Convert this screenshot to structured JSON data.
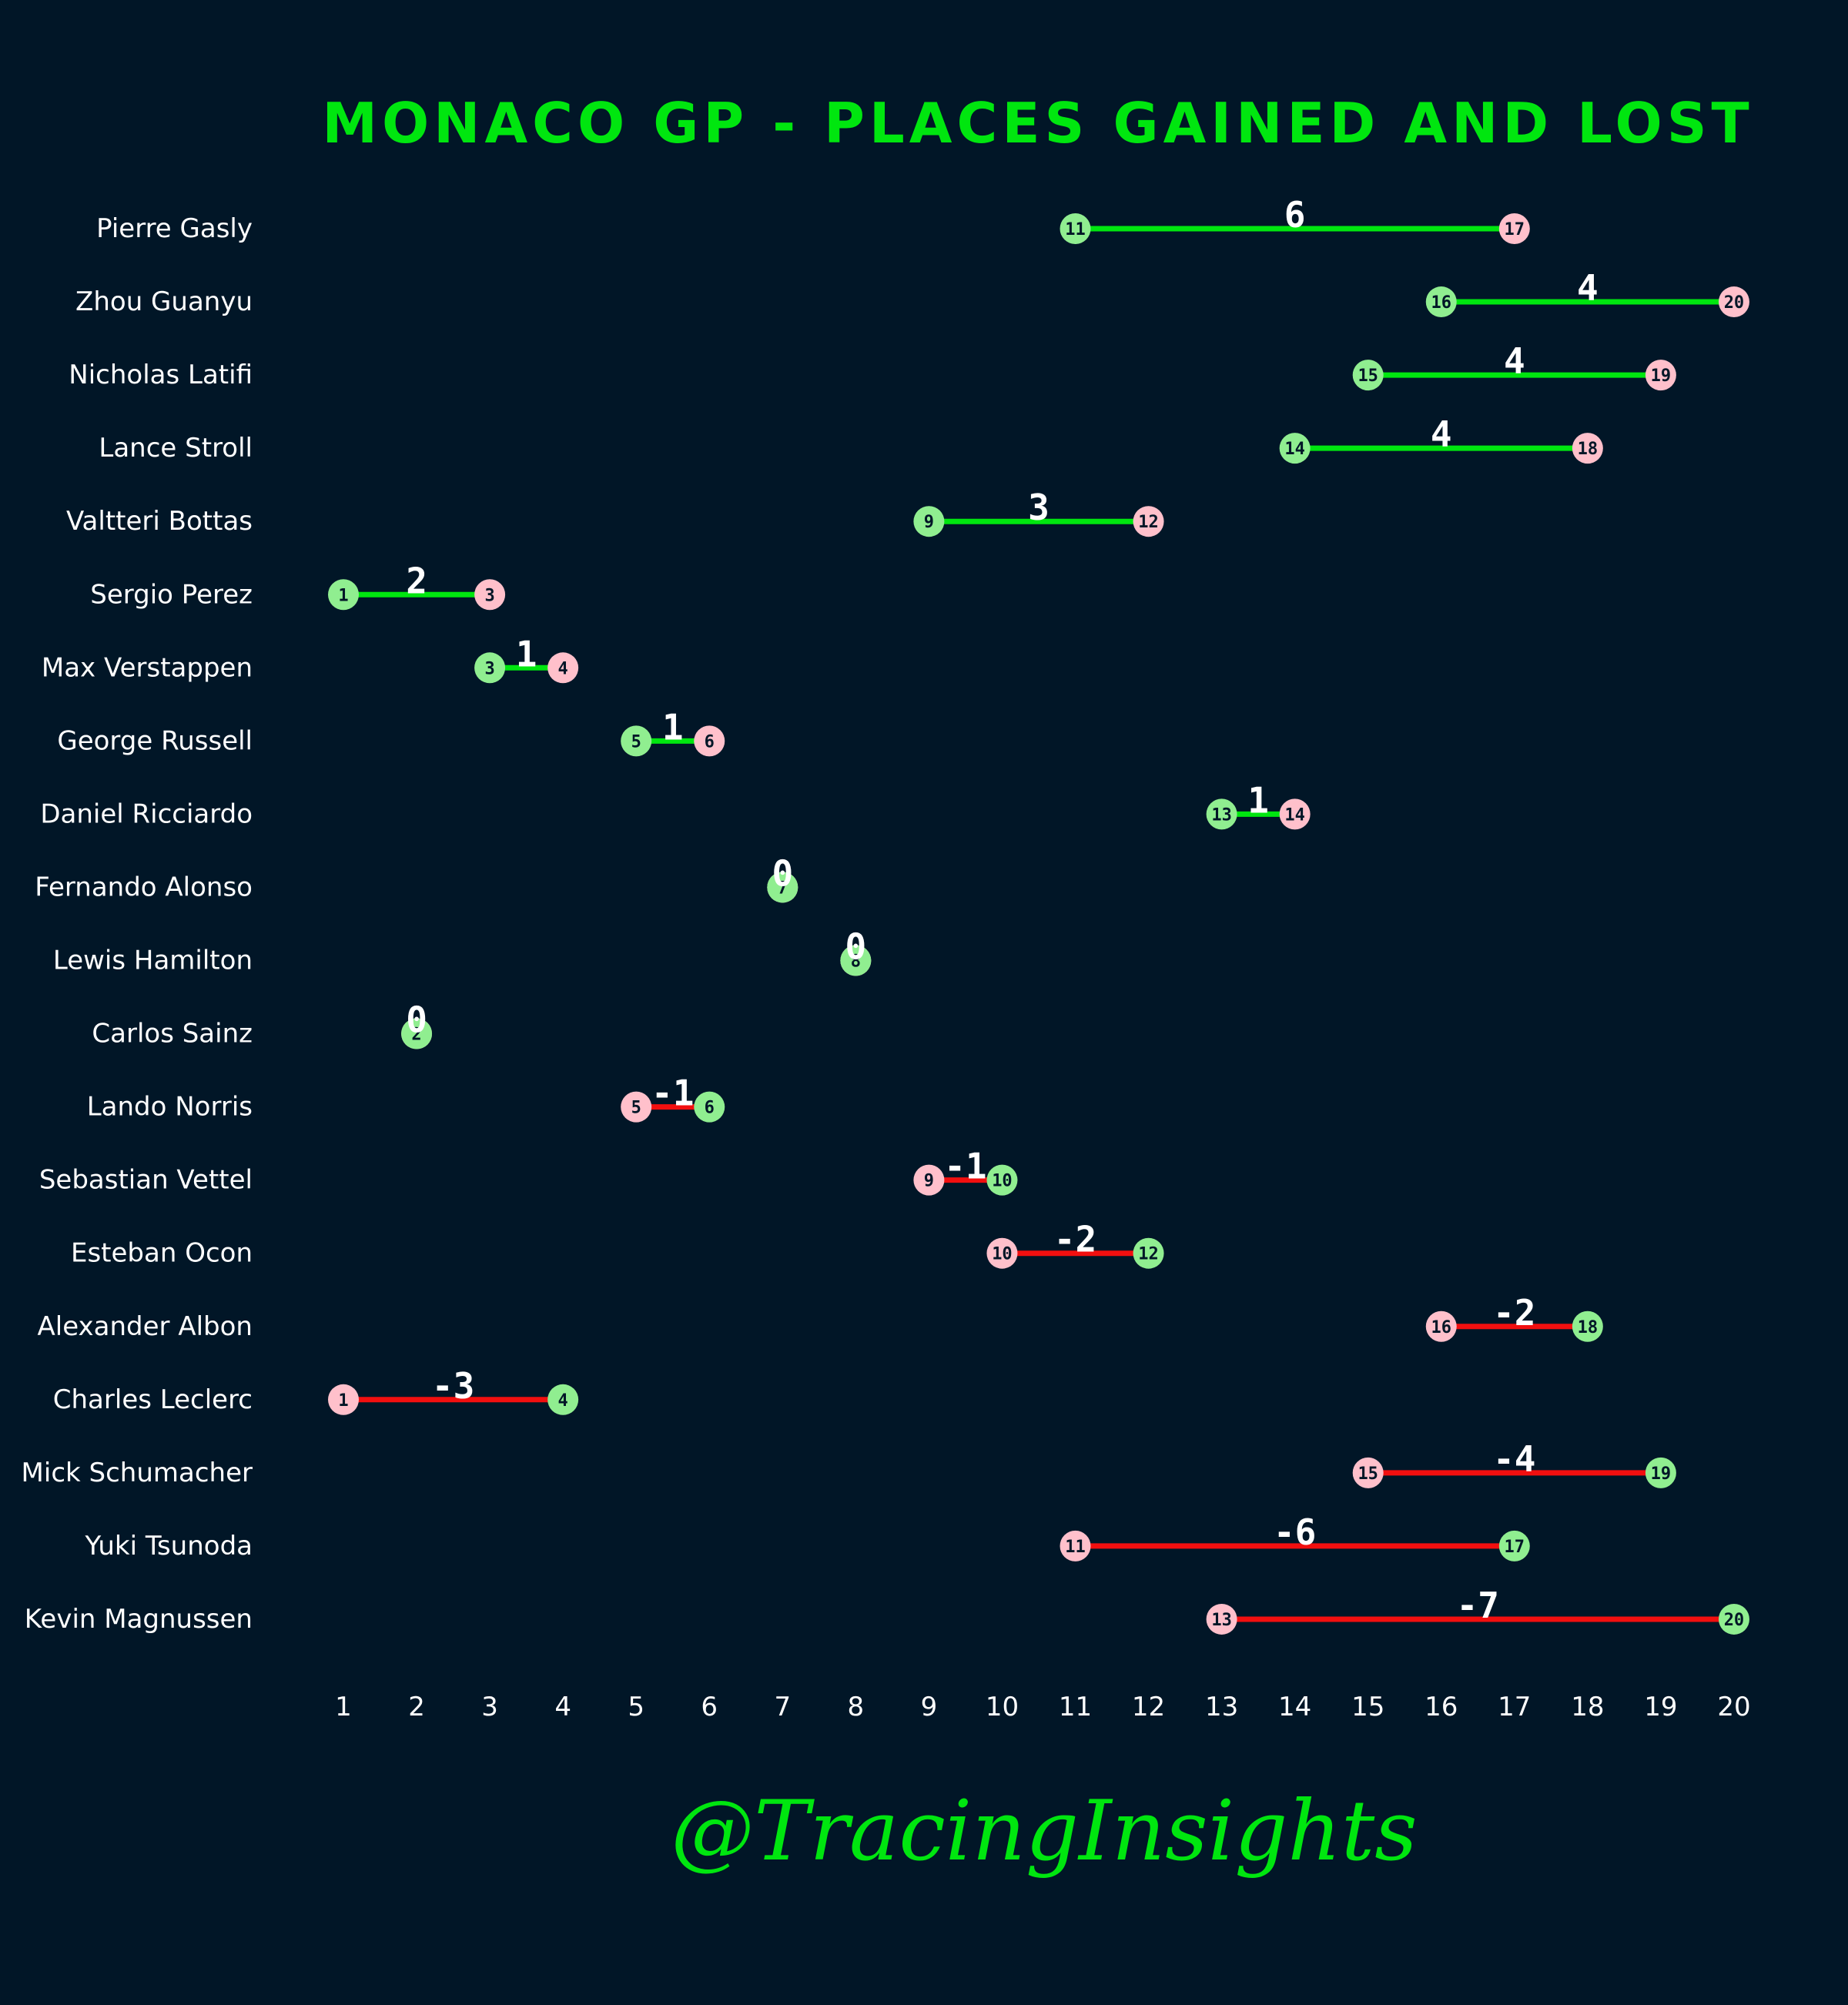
{
  "chart_data": {
    "type": "dumbbell",
    "title": "MONACO GP - PLACES GAINED AND LOST",
    "watermark": "@TracingInsights",
    "xlim": [
      1,
      20
    ],
    "x_ticks": [
      1,
      2,
      3,
      4,
      5,
      6,
      7,
      8,
      9,
      10,
      11,
      12,
      13,
      14,
      15,
      16,
      17,
      18,
      19,
      20
    ],
    "colors": {
      "background": "#011627",
      "title": "#00e60f",
      "gain_line": "#00e60f",
      "loss_line": "#f20f0f",
      "finish_dot": "#90ee90",
      "grid_dot": "#ffc0cb",
      "label_text": "#ffffff",
      "dot_text": "#011627"
    },
    "drivers": [
      {
        "name": "Pierre  Gasly",
        "grid": 17,
        "finish": 11,
        "change": 6
      },
      {
        "name": "Zhou  Guanyu",
        "grid": 20,
        "finish": 16,
        "change": 4
      },
      {
        "name": "Nicholas  Latifi",
        "grid": 19,
        "finish": 15,
        "change": 4
      },
      {
        "name": "Lance  Stroll",
        "grid": 18,
        "finish": 14,
        "change": 4
      },
      {
        "name": "Valtteri  Bottas",
        "grid": 12,
        "finish": 9,
        "change": 3
      },
      {
        "name": "Sergio  Perez",
        "grid": 3,
        "finish": 1,
        "change": 2
      },
      {
        "name": "Max  Verstappen",
        "grid": 4,
        "finish": 3,
        "change": 1
      },
      {
        "name": "George  Russell",
        "grid": 6,
        "finish": 5,
        "change": 1
      },
      {
        "name": "Daniel  Ricciardo",
        "grid": 14,
        "finish": 13,
        "change": 1
      },
      {
        "name": "Fernando  Alonso",
        "grid": 7,
        "finish": 7,
        "change": 0
      },
      {
        "name": "Lewis  Hamilton",
        "grid": 8,
        "finish": 8,
        "change": 0
      },
      {
        "name": "Carlos  Sainz",
        "grid": 2,
        "finish": 2,
        "change": 0
      },
      {
        "name": "Lando  Norris",
        "grid": 5,
        "finish": 6,
        "change": -1
      },
      {
        "name": "Sebastian  Vettel",
        "grid": 9,
        "finish": 10,
        "change": -1
      },
      {
        "name": "Esteban  Ocon",
        "grid": 10,
        "finish": 12,
        "change": -2
      },
      {
        "name": "Alexander  Albon",
        "grid": 16,
        "finish": 18,
        "change": -2
      },
      {
        "name": "Charles  Leclerc",
        "grid": 1,
        "finish": 4,
        "change": -3
      },
      {
        "name": "Mick  Schumacher",
        "grid": 15,
        "finish": 19,
        "change": -4
      },
      {
        "name": "Yuki  Tsunoda",
        "grid": 11,
        "finish": 17,
        "change": -6
      },
      {
        "name": "Kevin  Magnussen",
        "grid": 13,
        "finish": 20,
        "change": -7
      }
    ]
  }
}
